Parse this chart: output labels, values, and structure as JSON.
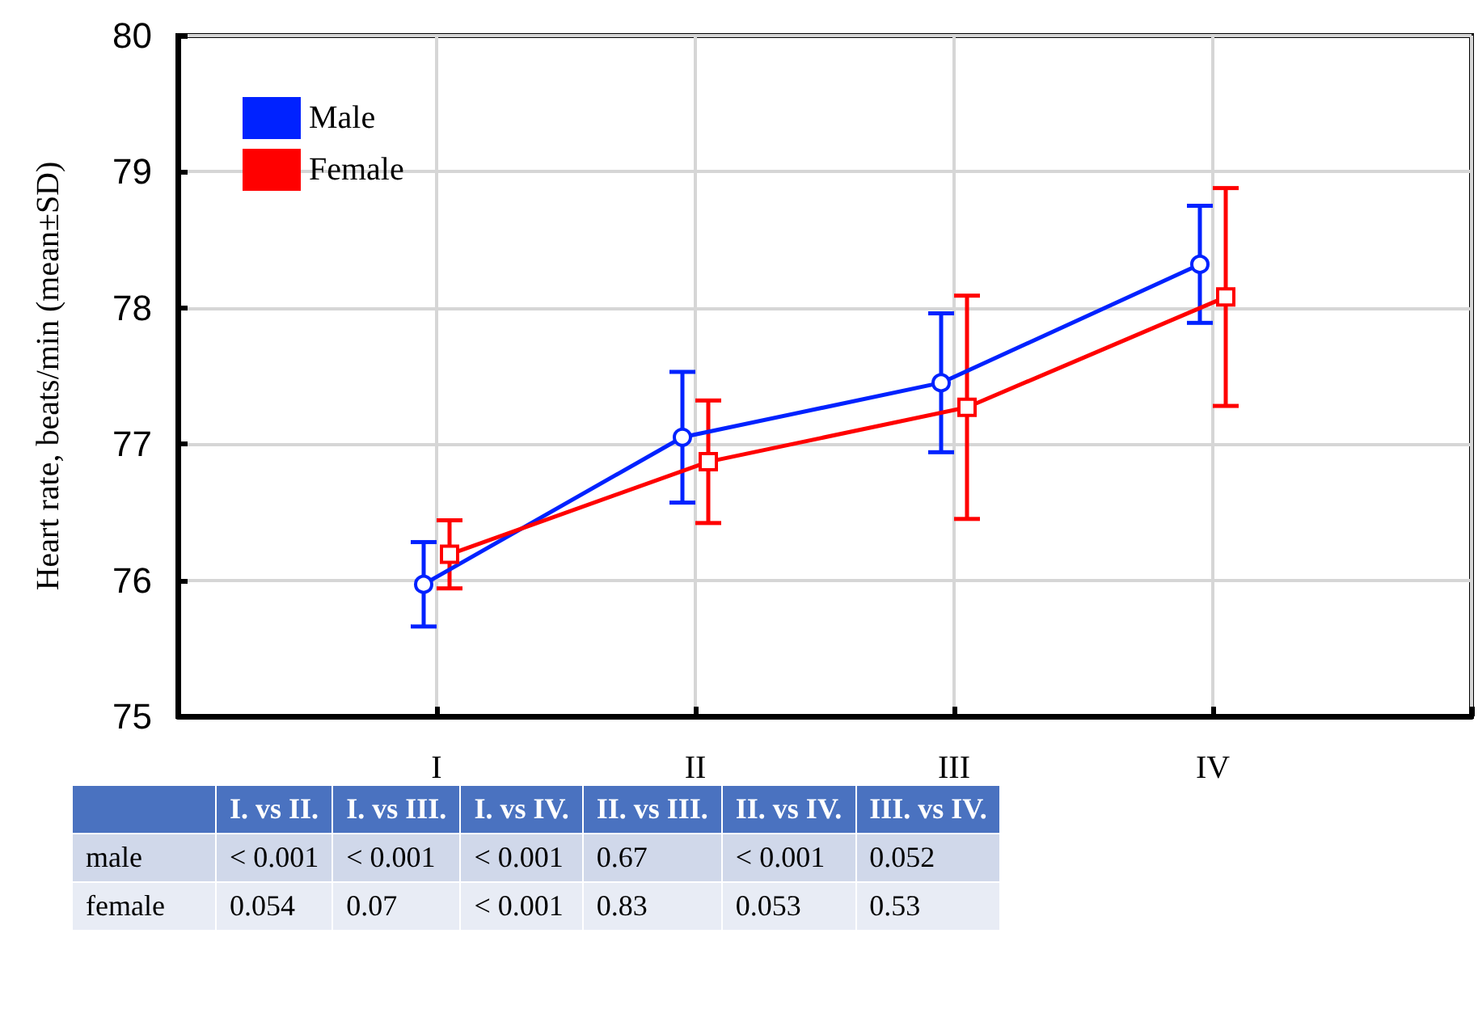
{
  "chart_data": {
    "type": "line",
    "ylabel": "Heart rate, beats/min (mean±SD)",
    "categories": [
      "I",
      "II",
      "III",
      "IV"
    ],
    "series": [
      {
        "name": "Male",
        "color": "#0022ff",
        "marker": "circle",
        "values": [
          75.97,
          77.05,
          77.45,
          78.32
        ],
        "errors": [
          0.31,
          0.48,
          0.51,
          0.43
        ]
      },
      {
        "name": "Female",
        "color": "#ff0000",
        "marker": "square",
        "values": [
          76.19,
          76.87,
          77.27,
          78.08
        ],
        "errors": [
          0.25,
          0.45,
          0.82,
          0.8
        ]
      }
    ],
    "ylim": [
      75,
      80
    ],
    "yticks": [
      75,
      76,
      77,
      78,
      79,
      80
    ],
    "grid": true,
    "legend": "top left",
    "line_style": "solid",
    "annotations": [
      "I. vs II.",
      "I. vs III.",
      "I. vs IV.",
      "II. vs III.",
      "II. vs IV.",
      "III. vs IV.",
      "male",
      "< 0.001",
      "< 0.001",
      "< 0.001",
      "0.67",
      "< 0.001",
      "0.052",
      "female",
      "0.054",
      "0.07",
      "< 0.001",
      "0.83",
      "0.053",
      "0.53"
    ]
  }
}
